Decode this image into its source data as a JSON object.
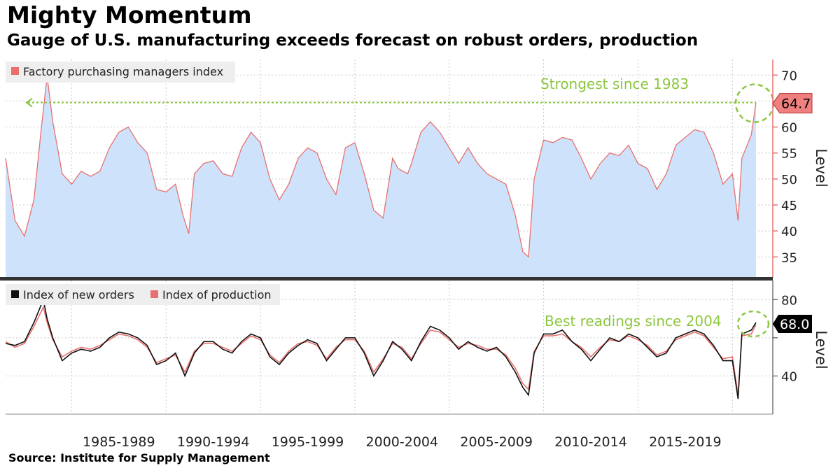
{
  "header": {
    "title": "Mighty Momentum",
    "subtitle": "Gauge of U.S. manufacturing exceeds forecast on robust orders, production"
  },
  "source": "Source: Institute for Supply Management",
  "colors": {
    "pmi_line": "#e8706e",
    "pmi_fill": "#cfe2fb",
    "new_orders": "#111111",
    "production": "#e8706e",
    "annotation": "#8cc63f",
    "callout_pmi": "#f08080",
    "callout_orders": "#000000"
  },
  "chart_data": [
    {
      "type": "area",
      "name": "pmi-panel",
      "ylabel": "Level",
      "ylim": [
        31,
        73
      ],
      "yticks": [
        35,
        40,
        45,
        50,
        55,
        60,
        65,
        70
      ],
      "ytick_labels": [
        "35",
        "40",
        "45",
        "50",
        "55",
        "60",
        "",
        "70"
      ],
      "xlim": [
        1981.5,
        2021.25
      ],
      "x_period_labels": [
        "1985-1989",
        "1990-1994",
        "1995-1999",
        "2000-2004",
        "2005-2009",
        "2010-2014",
        "2015-2019"
      ],
      "grid": true,
      "legend": {
        "position": "top-left",
        "entries": [
          "Factory purchasing managers index"
        ]
      },
      "annotation": "Strongest since 1983",
      "last_value_label": "64.7",
      "series": [
        {
          "name": "Factory purchasing managers index",
          "x": [
            1981.5,
            1982.0,
            1982.5,
            1983.0,
            1983.4,
            1983.7,
            1984.0,
            1984.5,
            1985.0,
            1985.5,
            1986.0,
            1986.5,
            1987.0,
            1987.5,
            1988.0,
            1988.5,
            1989.0,
            1989.5,
            1990.0,
            1990.5,
            1990.9,
            1991.2,
            1991.5,
            1992.0,
            1992.5,
            1993.0,
            1993.5,
            1994.0,
            1994.5,
            1995.0,
            1995.5,
            1996.0,
            1996.5,
            1997.0,
            1997.5,
            1998.0,
            1998.5,
            1999.0,
            1999.5,
            2000.0,
            2000.5,
            2001.0,
            2001.5,
            2002.0,
            2002.3,
            2002.8,
            2003.0,
            2003.5,
            2004.0,
            2004.5,
            2005.0,
            2005.5,
            2006.0,
            2006.5,
            2007.0,
            2007.5,
            2008.0,
            2008.5,
            2008.9,
            2009.2,
            2009.5,
            2010.0,
            2010.5,
            2011.0,
            2011.5,
            2012.0,
            2012.5,
            2013.0,
            2013.5,
            2014.0,
            2014.5,
            2015.0,
            2015.5,
            2016.0,
            2016.5,
            2017.0,
            2017.5,
            2018.0,
            2018.5,
            2019.0,
            2019.5,
            2020.0,
            2020.3,
            2020.5,
            2021.0,
            2021.25
          ],
          "y": [
            54,
            42,
            39,
            46,
            60,
            69.8,
            61,
            51,
            49,
            51.5,
            50.5,
            51.5,
            56,
            59,
            60,
            57,
            55,
            48,
            47.5,
            49,
            43,
            39.5,
            51,
            53,
            53.5,
            51,
            50.5,
            56,
            59,
            57,
            50,
            46,
            49,
            54,
            56,
            55,
            50,
            47,
            56,
            57,
            51,
            44,
            42.5,
            54,
            52,
            51,
            53,
            59,
            61,
            59,
            56,
            53,
            56,
            53,
            51,
            50,
            49,
            43,
            36,
            35,
            50,
            57.5,
            57,
            58,
            57.5,
            54,
            50,
            53,
            55,
            54.5,
            56.5,
            53,
            52,
            48,
            51,
            56.5,
            58,
            59.5,
            59,
            55,
            49,
            51,
            42,
            54,
            58.5,
            64.7
          ]
        }
      ]
    },
    {
      "type": "line",
      "name": "orders-production-panel",
      "ylabel": "Level",
      "ylim": [
        20,
        90
      ],
      "yticks": [
        40,
        60,
        80
      ],
      "ytick_labels": [
        "40",
        "",
        "80"
      ],
      "xlim": [
        1981.5,
        2021.25
      ],
      "grid": true,
      "legend": {
        "position": "top-left",
        "entries": [
          "Index of new orders",
          "Index of production"
        ]
      },
      "annotation": "Best readings since 2004",
      "last_value_label": "68.0",
      "series": [
        {
          "name": "Index of new orders",
          "x": [
            1981.5,
            1982.0,
            1982.5,
            1983.0,
            1983.5,
            1983.7,
            1984.0,
            1984.5,
            1985.0,
            1985.5,
            1986.0,
            1986.5,
            1987.0,
            1987.5,
            1988.0,
            1988.5,
            1989.0,
            1989.5,
            1990.0,
            1990.5,
            1991.0,
            1991.5,
            1992.0,
            1992.5,
            1993.0,
            1993.5,
            1994.0,
            1994.5,
            1995.0,
            1995.5,
            1996.0,
            1996.5,
            1997.0,
            1997.5,
            1998.0,
            1998.5,
            1999.0,
            1999.5,
            2000.0,
            2000.5,
            2001.0,
            2001.5,
            2002.0,
            2002.5,
            2003.0,
            2003.5,
            2004.0,
            2004.5,
            2005.0,
            2005.5,
            2006.0,
            2006.5,
            2007.0,
            2007.5,
            2008.0,
            2008.5,
            2008.9,
            2009.2,
            2009.5,
            2010.0,
            2010.5,
            2011.0,
            2011.5,
            2012.0,
            2012.5,
            2013.0,
            2013.5,
            2014.0,
            2014.5,
            2015.0,
            2015.5,
            2016.0,
            2016.5,
            2017.0,
            2017.5,
            2018.0,
            2018.5,
            2019.0,
            2019.5,
            2020.0,
            2020.3,
            2020.5,
            2021.0,
            2021.25
          ],
          "y": [
            57,
            56,
            58,
            68,
            80,
            70,
            60,
            48,
            52,
            54,
            53,
            55,
            60,
            63,
            62,
            60,
            56,
            46,
            48,
            52,
            40,
            52,
            58,
            58,
            54,
            52,
            58,
            62,
            60,
            50,
            46,
            52,
            56,
            59,
            57,
            48,
            54,
            60,
            60,
            52,
            40,
            48,
            58,
            54,
            48,
            58,
            66,
            64,
            60,
            54,
            58,
            55,
            53,
            55,
            50,
            42,
            34,
            30,
            52,
            62,
            62,
            64,
            58,
            54,
            48,
            54,
            60,
            58,
            62,
            60,
            55,
            50,
            52,
            60,
            62,
            64,
            62,
            56,
            48,
            48,
            28,
            62,
            64,
            68
          ]
        },
        {
          "name": "Index of production",
          "x": [
            1981.5,
            1982.0,
            1982.5,
            1983.0,
            1983.5,
            1983.7,
            1984.0,
            1984.5,
            1985.0,
            1985.5,
            1986.0,
            1986.5,
            1987.0,
            1987.5,
            1988.0,
            1988.5,
            1989.0,
            1989.5,
            1990.0,
            1990.5,
            1991.0,
            1991.5,
            1992.0,
            1992.5,
            1993.0,
            1993.5,
            1994.0,
            1994.5,
            1995.0,
            1995.5,
            1996.0,
            1996.5,
            1997.0,
            1997.5,
            1998.0,
            1998.5,
            1999.0,
            1999.5,
            2000.0,
            2000.5,
            2001.0,
            2001.5,
            2002.0,
            2002.5,
            2003.0,
            2003.5,
            2004.0,
            2004.5,
            2005.0,
            2005.5,
            2006.0,
            2006.5,
            2007.0,
            2007.5,
            2008.0,
            2008.5,
            2008.9,
            2009.2,
            2009.5,
            2010.0,
            2010.5,
            2011.0,
            2011.5,
            2012.0,
            2012.5,
            2013.0,
            2013.5,
            2014.0,
            2014.5,
            2015.0,
            2015.5,
            2016.0,
            2016.5,
            2017.0,
            2017.5,
            2018.0,
            2018.5,
            2019.0,
            2019.5,
            2020.0,
            2020.3,
            2020.5,
            2021.0,
            2021.25
          ],
          "y": [
            58,
            55,
            57,
            66,
            76,
            68,
            59,
            50,
            53,
            55,
            54,
            56,
            59,
            62,
            61,
            59,
            55,
            47,
            49,
            51,
            42,
            53,
            57,
            57,
            55,
            53,
            57,
            61,
            59,
            51,
            47,
            53,
            57,
            58,
            56,
            49,
            55,
            59,
            59,
            53,
            42,
            49,
            57,
            55,
            49,
            57,
            64,
            63,
            59,
            55,
            57,
            56,
            54,
            54,
            51,
            44,
            36,
            33,
            53,
            61,
            61,
            62,
            58,
            55,
            50,
            55,
            59,
            58,
            61,
            59,
            56,
            51,
            53,
            59,
            61,
            63,
            61,
            55,
            49,
            50,
            30,
            61,
            62,
            67
          ]
        }
      ]
    }
  ]
}
